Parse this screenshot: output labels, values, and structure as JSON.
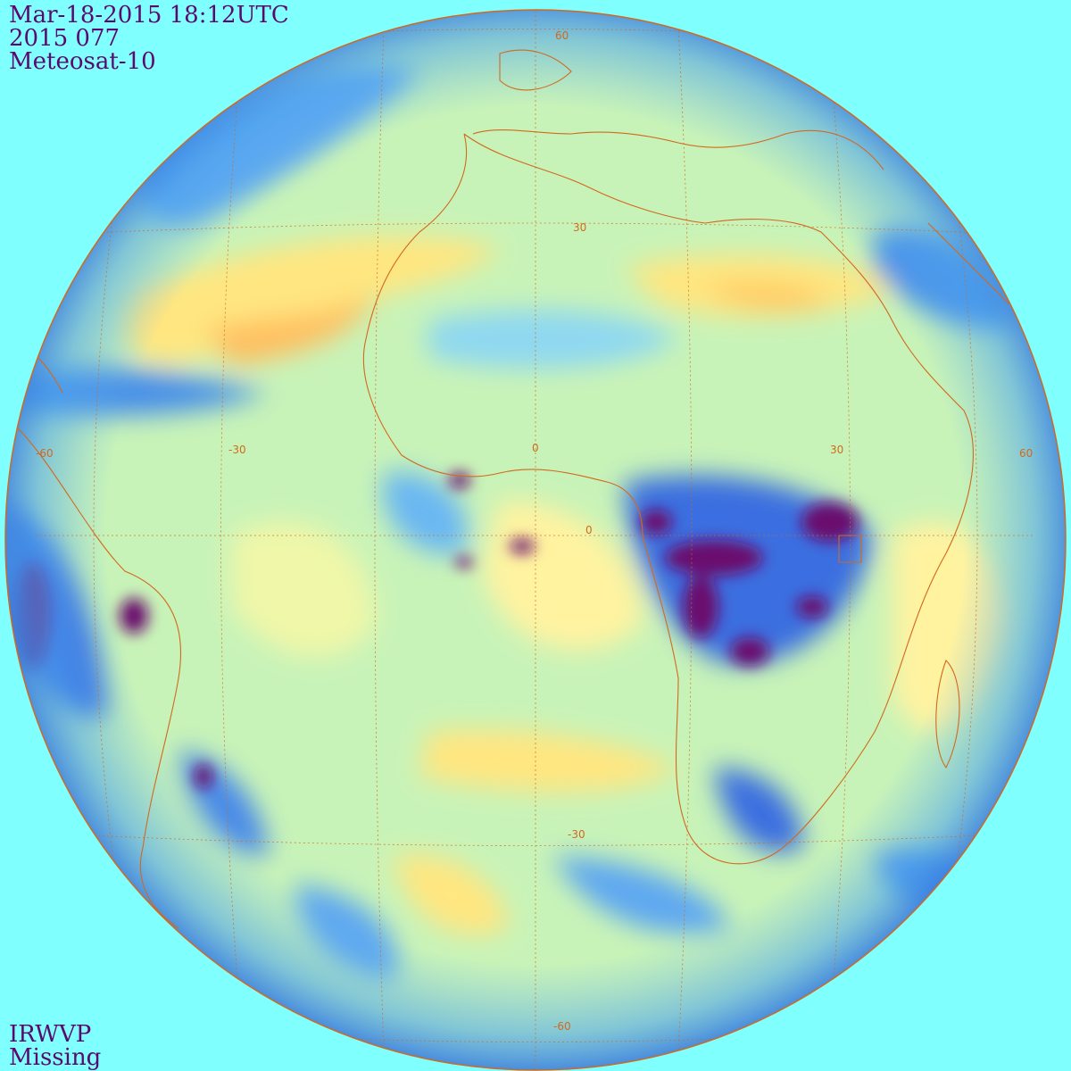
{
  "header": {
    "datetime": "Mar-18-2015 18:12UTC",
    "julian": "2015 077",
    "satellite": "Meteosat-10"
  },
  "footer": {
    "channel": "IRWVP",
    "status": "Missing"
  },
  "grid_labels": {
    "lat_60n": "60",
    "lat_30n": "30",
    "lat_0": "0",
    "lat_30s": "-30",
    "lat_60s": "-60",
    "lon_m60": "-60",
    "lon_m30": "-30",
    "lon_0": "0",
    "lon_30": "30",
    "lon_60": "60"
  },
  "colors": {
    "background": "#80ffff",
    "label_text": "#5a0a6e",
    "grid_and_coast": "#d2691e",
    "moist_dark": "#6a0d6e",
    "moist": "#2e5bd6",
    "mid_blue": "#5fb0f0",
    "light": "#b8f0d0",
    "green_yellow": "#d8f59a",
    "dry_yellow": "#fff3a0",
    "very_dry": "#ffcc66"
  }
}
